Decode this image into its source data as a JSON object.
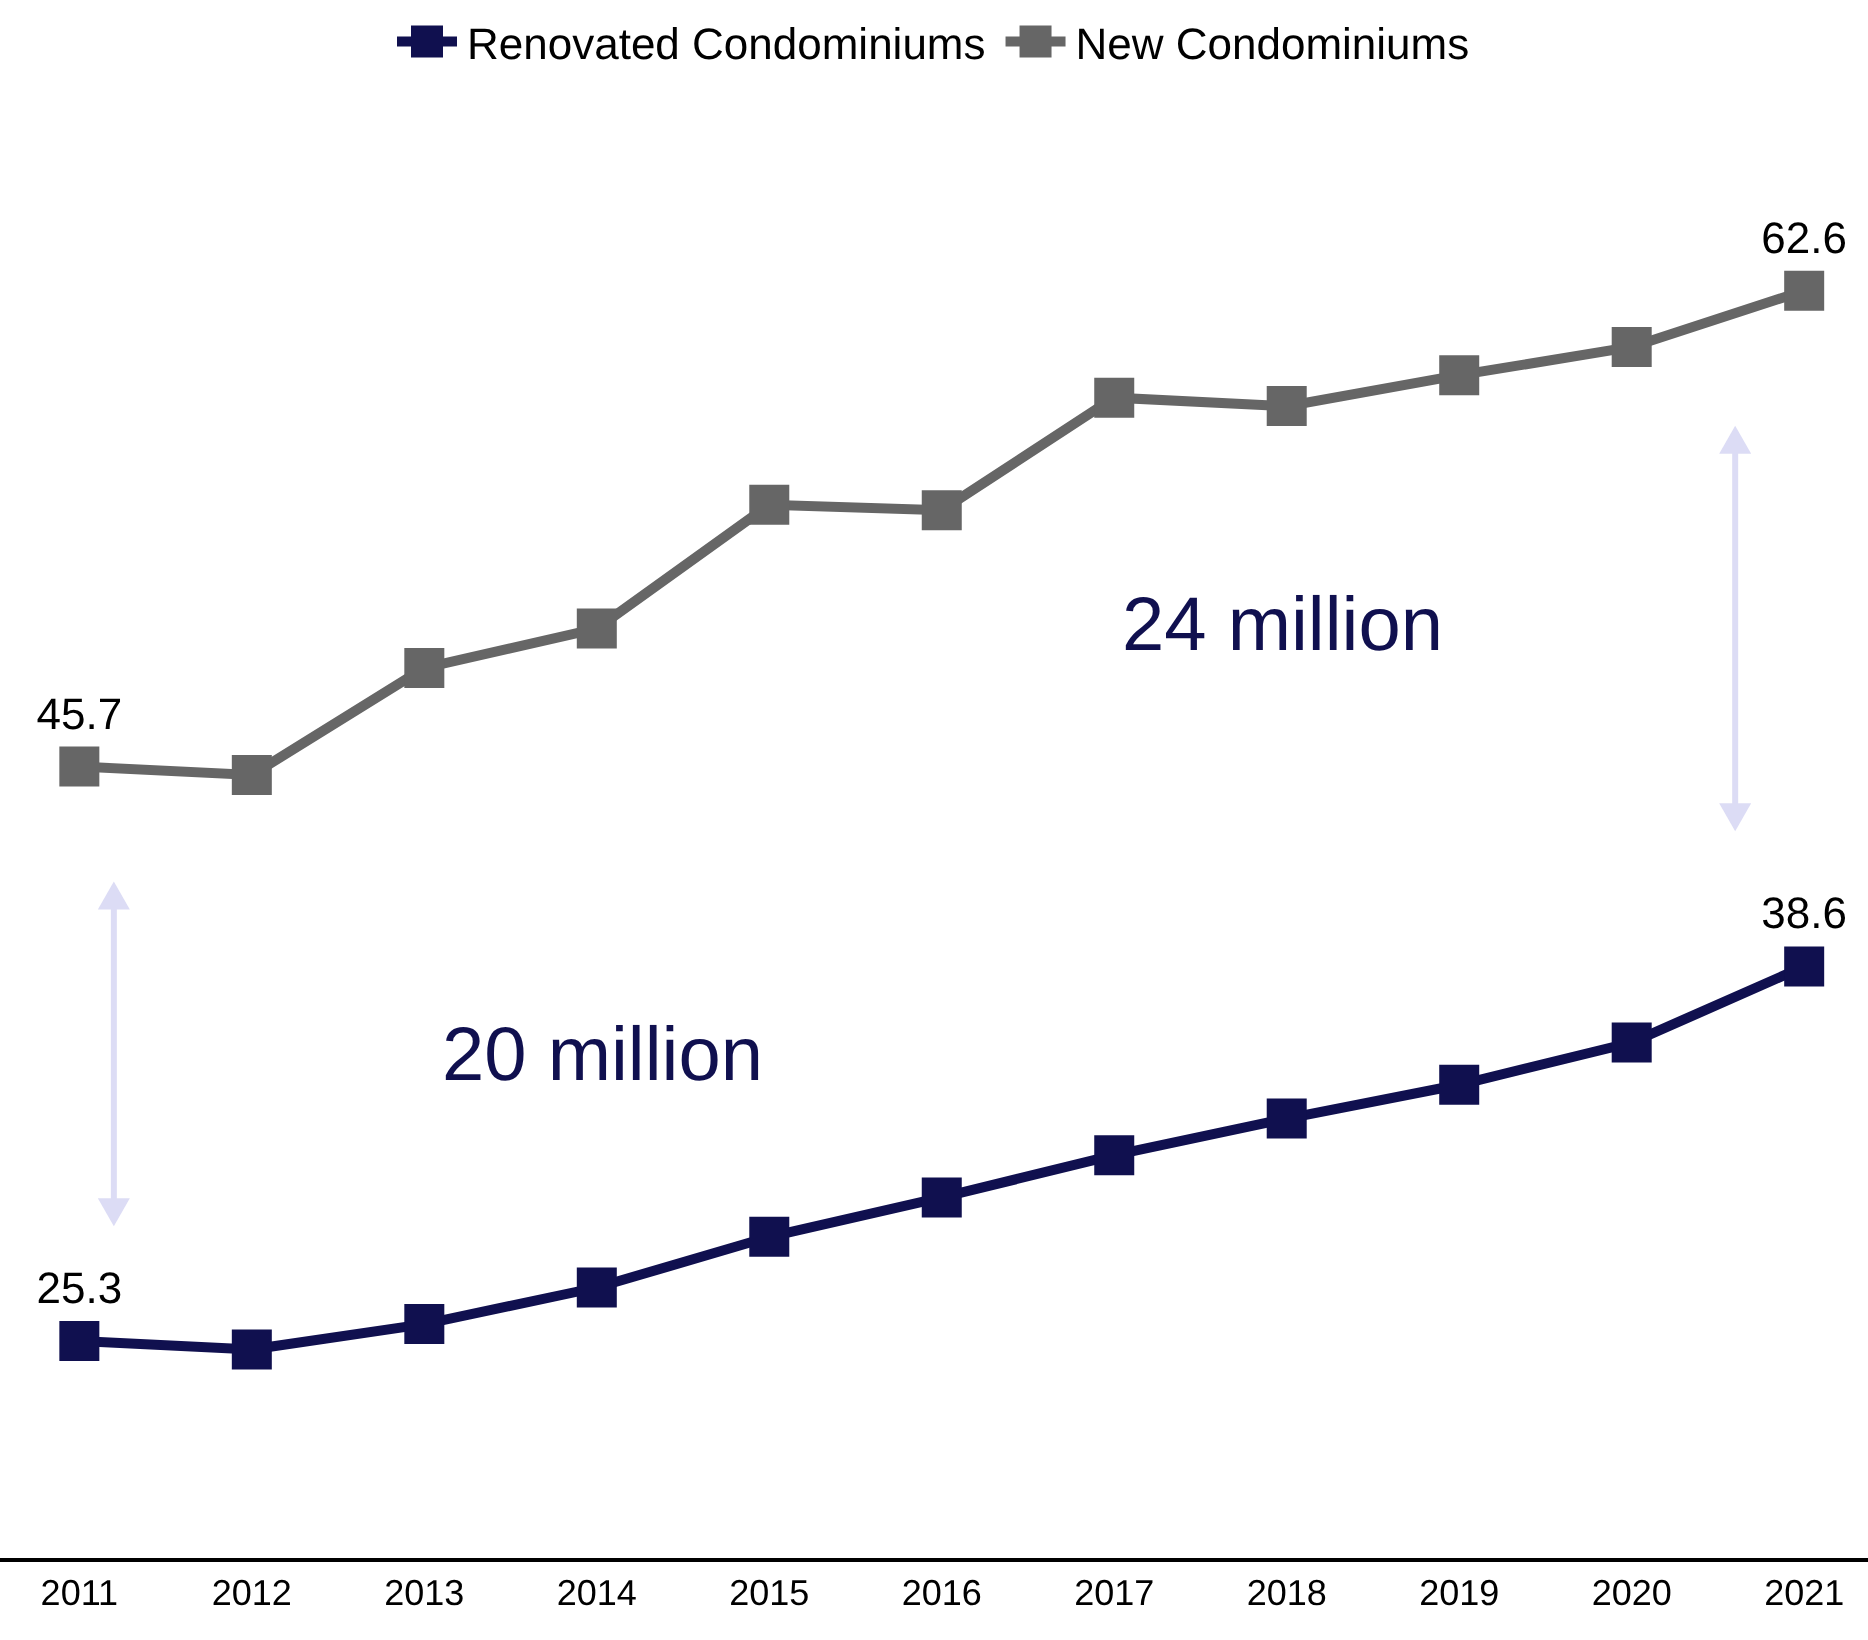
{
  "chart_data": {
    "type": "line",
    "categories": [
      "2011",
      "2012",
      "2013",
      "2014",
      "2015",
      "2016",
      "2017",
      "2018",
      "2019",
      "2020",
      "2021"
    ],
    "series": [
      {
        "name": "Renovated Condominiums",
        "color": "#10104f",
        "values": [
          25.3,
          25.0,
          25.9,
          27.2,
          29.0,
          30.4,
          31.9,
          33.2,
          34.4,
          35.9,
          38.6
        ],
        "value_labels": [
          "25.3",
          null,
          null,
          null,
          null,
          null,
          null,
          null,
          null,
          null,
          "38.6"
        ]
      },
      {
        "name": "New Condominiums",
        "color": "#666666",
        "values": [
          45.7,
          45.4,
          49.2,
          50.6,
          55.0,
          54.8,
          58.8,
          58.5,
          59.6,
          60.6,
          62.6
        ],
        "value_labels": [
          "45.7",
          null,
          null,
          null,
          null,
          null,
          null,
          null,
          null,
          null,
          "62.6"
        ]
      }
    ],
    "tick_labels": "x",
    "marker": "square",
    "line_style": "solid",
    "grid": false,
    "legend": "top",
    "annotations": [
      "20 million",
      "24 million"
    ]
  }
}
